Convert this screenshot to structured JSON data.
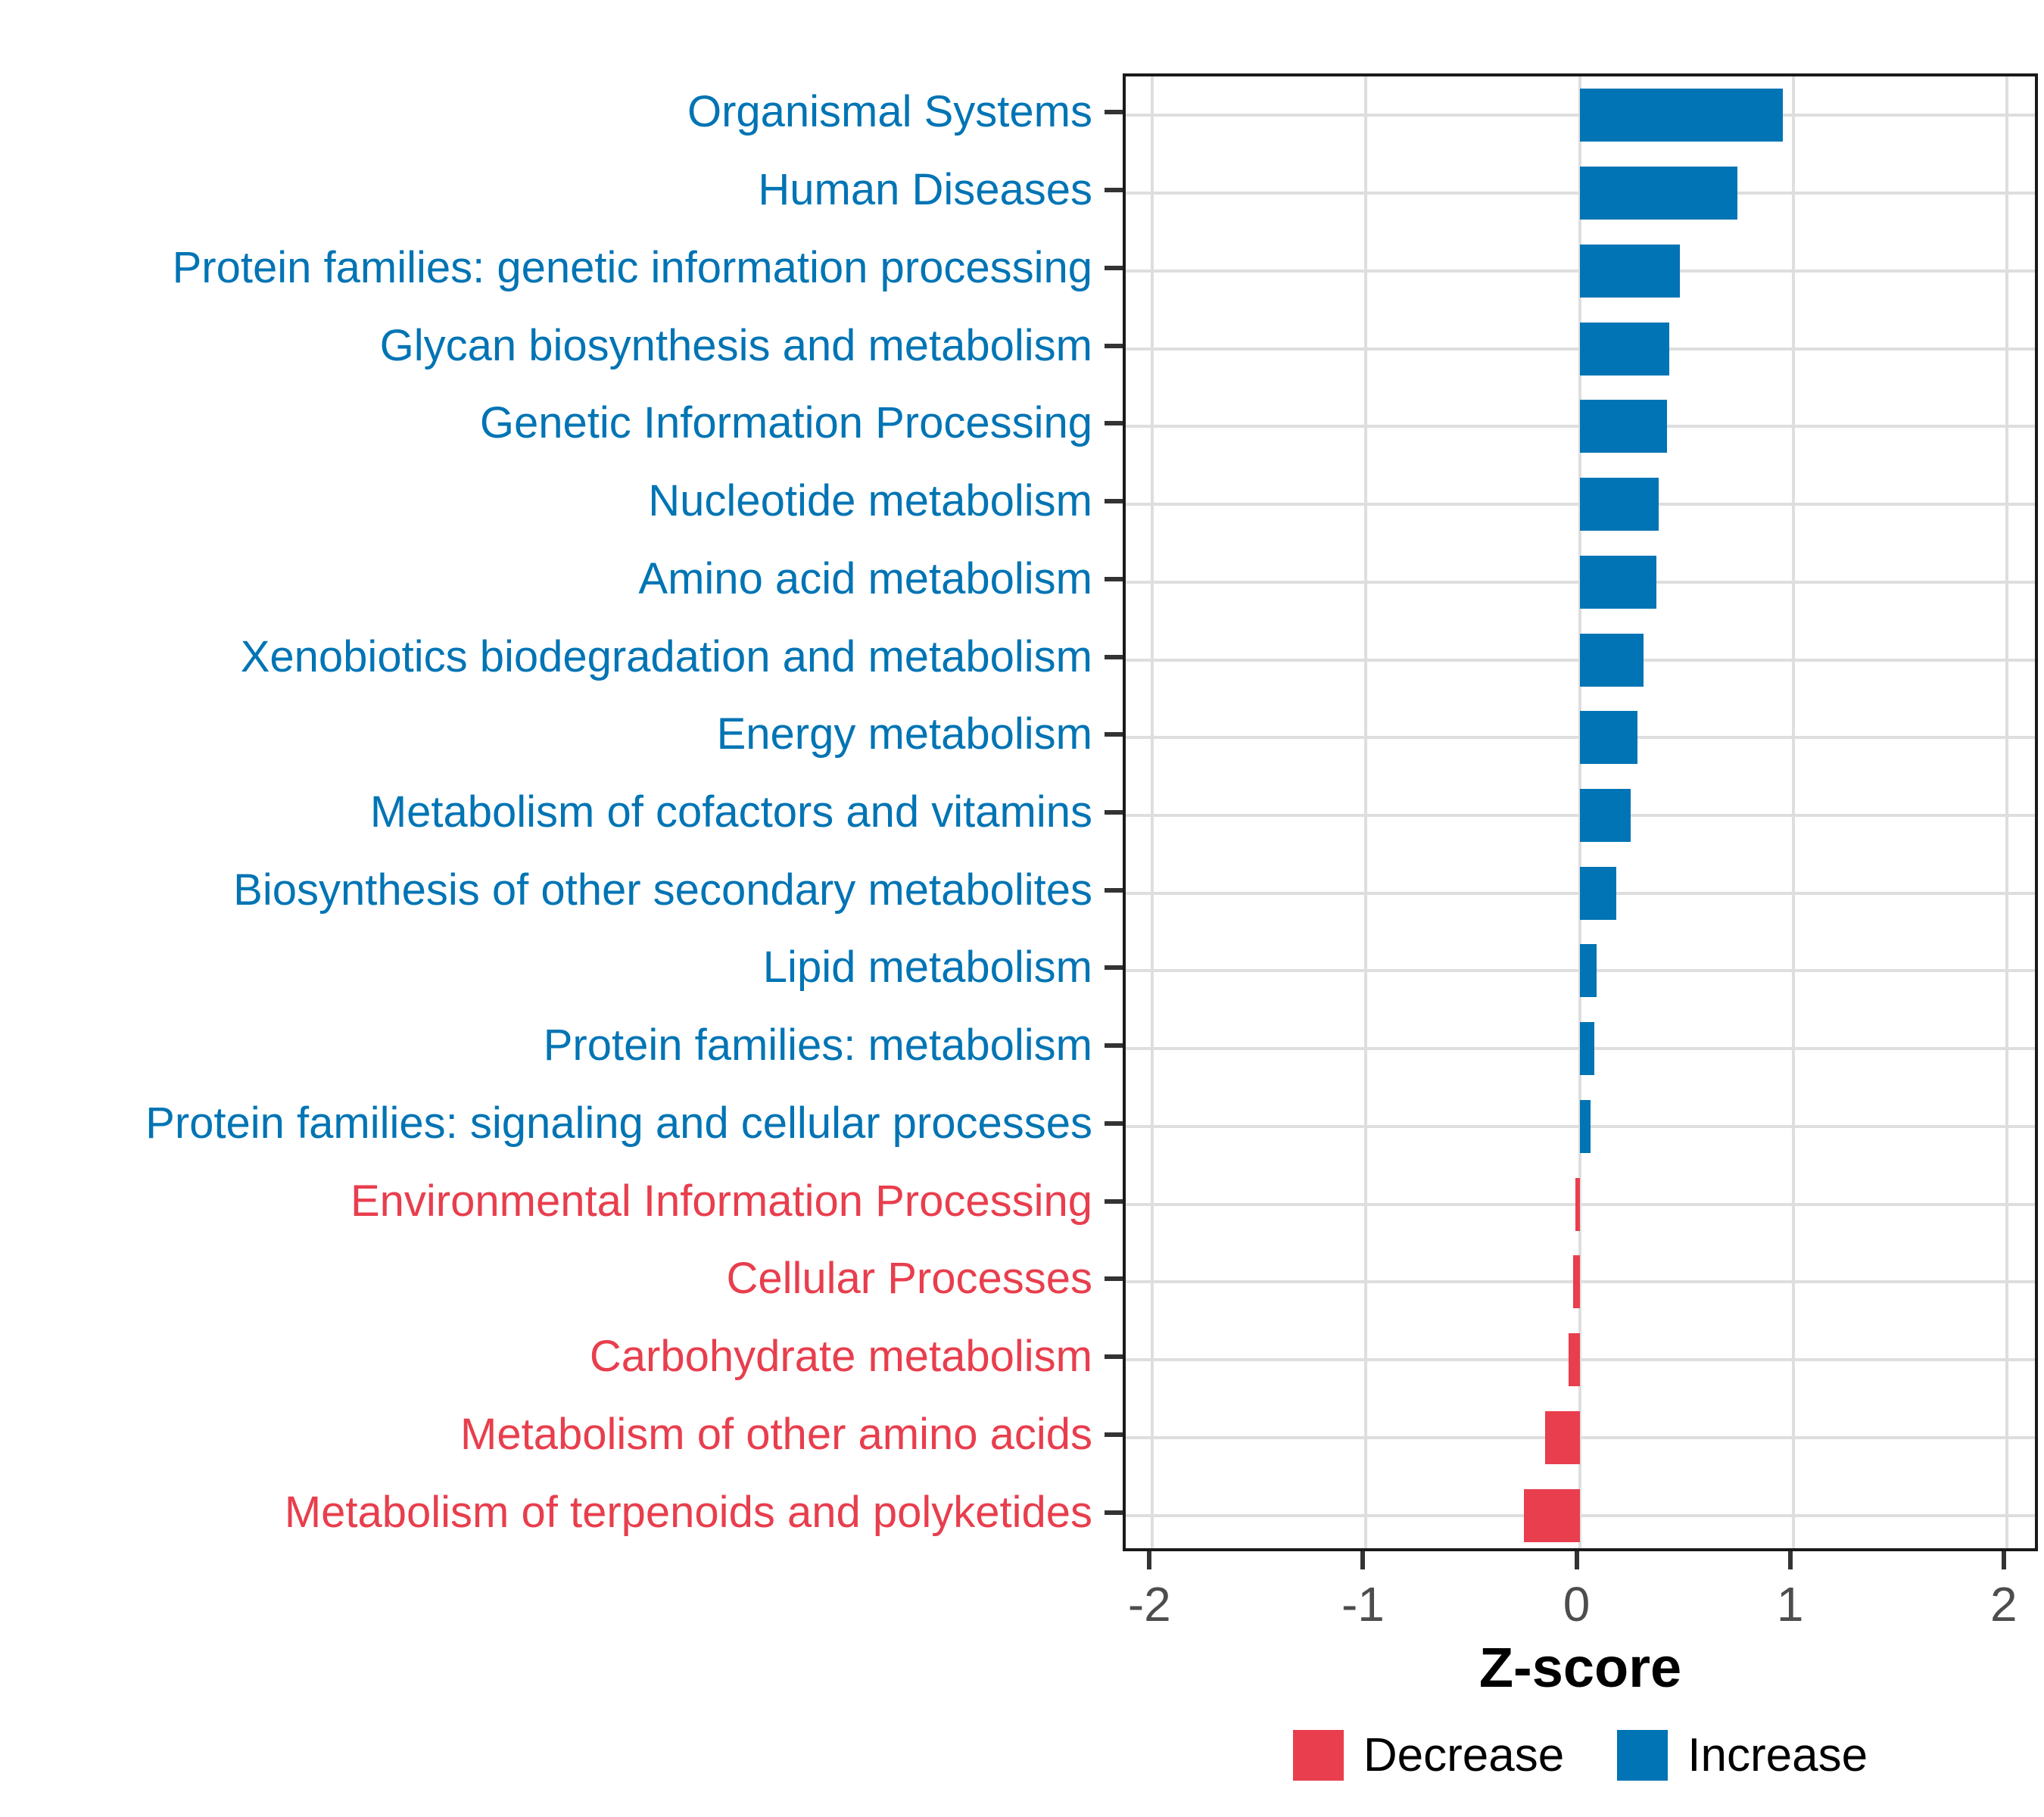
{
  "chart_data": {
    "type": "bar",
    "orientation": "horizontal",
    "title": "",
    "xlabel": "Z-score",
    "ylabel": "",
    "xlim": [
      -2.125,
      2.16
    ],
    "x_ticks": [
      -2,
      -1,
      0,
      1,
      2
    ],
    "grid": true,
    "legend_position": "bottom",
    "categories": [
      "Organismal Systems",
      "Human Diseases",
      "Protein families: genetic information processing",
      "Glycan biosynthesis and metabolism",
      "Genetic Information Processing",
      "Nucleotide metabolism",
      "Amino acid metabolism",
      "Xenobiotics biodegradation and metabolism",
      "Energy metabolism",
      "Metabolism of cofactors and vitamins",
      "Biosynthesis of other secondary metabolites",
      "Lipid metabolism",
      "Protein families: metabolism",
      "Protein families: signaling and cellular processes",
      "Environmental Information Processing",
      "Cellular Processes",
      "Carbohydrate metabolism",
      "Metabolism of other amino acids",
      "Metabolism of terpenoids and polyketides"
    ],
    "values": [
      0.95,
      0.74,
      0.47,
      0.42,
      0.41,
      0.37,
      0.36,
      0.3,
      0.27,
      0.24,
      0.17,
      0.08,
      0.07,
      0.05,
      -0.02,
      -0.03,
      -0.05,
      -0.16,
      -0.26
    ],
    "colors": {
      "increase": "#0074b4",
      "decrease": "#e83e4d"
    },
    "legend": [
      {
        "label": "Decrease",
        "color": "#e83e4d"
      },
      {
        "label": "Increase",
        "color": "#0074b4"
      }
    ]
  }
}
